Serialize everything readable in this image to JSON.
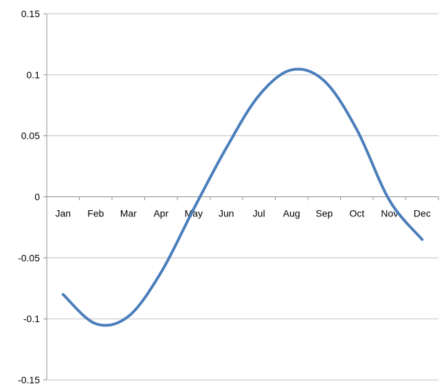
{
  "chart_data": {
    "type": "line",
    "title": "",
    "xlabel": "",
    "ylabel": "",
    "categories": [
      "Jan",
      "Feb",
      "Mar",
      "Apr",
      "May",
      "Jun",
      "Jul",
      "Aug",
      "Sep",
      "Oct",
      "Nov",
      "Dec"
    ],
    "ylim": [
      -0.15,
      0.15
    ],
    "yticks": [
      0.15,
      0.1,
      0.05,
      0,
      -0.05,
      -0.1,
      -0.15
    ],
    "ytick_labels": [
      "0.15",
      "0.1",
      "0.05",
      "0",
      "-0.05",
      "-0.1",
      "-0.15"
    ],
    "grid": true,
    "legend": "none",
    "smooth": true,
    "series": [
      {
        "color": "#4a7ebb",
        "values": [
          -0.08,
          -0.104,
          -0.098,
          -0.062,
          -0.01,
          0.04,
          0.083,
          0.104,
          0.095,
          0.055,
          -0.003,
          -0.035
        ]
      }
    ]
  }
}
